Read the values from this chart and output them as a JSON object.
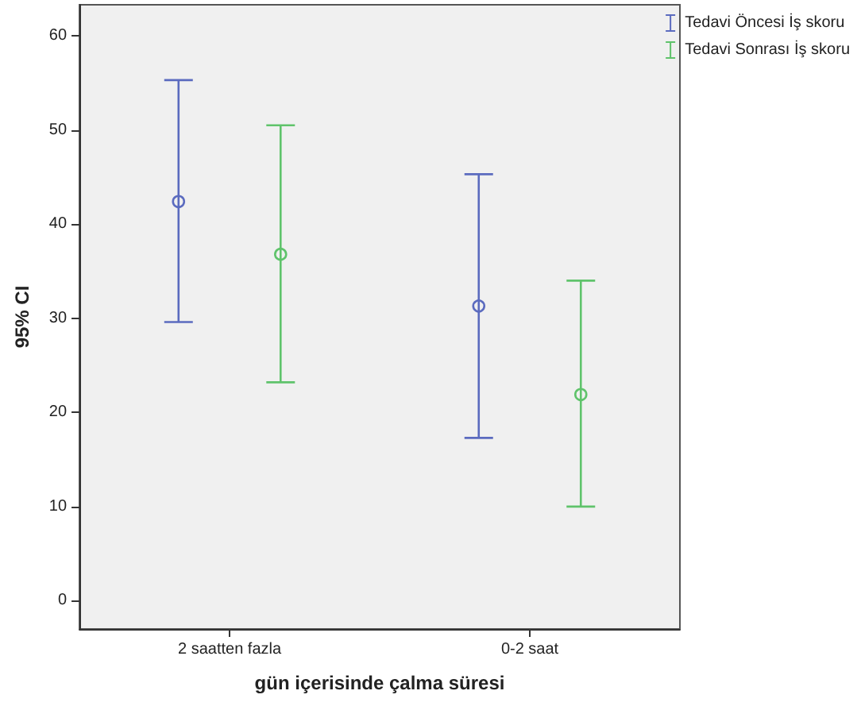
{
  "chart_data": {
    "type": "scatter",
    "xlabel": "gün içerisinde çalma süresi",
    "ylabel": "95% CI",
    "categories": [
      "2 saatten fazla",
      "0-2 saat"
    ],
    "series": [
      {
        "name": "Tedavi Öncesi İş skoru",
        "color": "#5b6bbf",
        "values": [
          42.4,
          31.3
        ],
        "errors": [
          [
            29.6,
            55.3
          ],
          [
            17.3,
            45.3
          ]
        ]
      },
      {
        "name": "Tedavi Sonrası İş skoru",
        "color": "#5fc36b",
        "values": [
          36.8,
          21.9
        ],
        "errors": [
          [
            23.2,
            50.5
          ],
          [
            10.0,
            34.0
          ]
        ]
      }
    ],
    "ylim": [
      -3,
      63.3
    ],
    "yticks": [
      0,
      10,
      20,
      30,
      40,
      50,
      60
    ],
    "grid": false,
    "legend": "top right",
    "marker": "circle"
  }
}
